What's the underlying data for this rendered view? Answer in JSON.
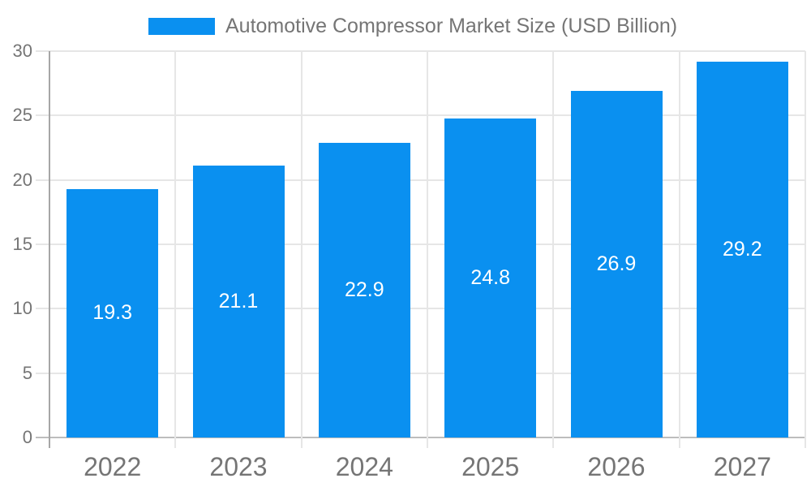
{
  "chart_data": {
    "type": "bar",
    "title": "Automotive Compressor Market Size (USD Billion)",
    "legend": {
      "label": "Automotive Compressor Market Size (USD Billion)",
      "position": "top"
    },
    "categories": [
      "2022",
      "2023",
      "2024",
      "2025",
      "2026",
      "2027"
    ],
    "series": [
      {
        "name": "Automotive Compressor Market Size (USD Billion)",
        "values": [
          19.3,
          21.1,
          22.9,
          24.8,
          26.9,
          29.2
        ]
      }
    ],
    "value_labels": [
      "19.3",
      "21.1",
      "22.9",
      "24.8",
      "26.9",
      "29.2"
    ],
    "xlabel": "",
    "ylabel": "",
    "ylim": [
      0,
      30
    ],
    "yticks": [
      0,
      5,
      10,
      15,
      20,
      25,
      30
    ],
    "grid": true,
    "colors": {
      "bar": "#0a90f0",
      "value_label_text": "#ffffff",
      "axis_text": "#757575",
      "legend_text": "#757575",
      "gridline": "#e6e6e6",
      "baseline": "#bdbdbd",
      "axis_line": "#a6a6a6",
      "background": "#ffffff"
    }
  }
}
